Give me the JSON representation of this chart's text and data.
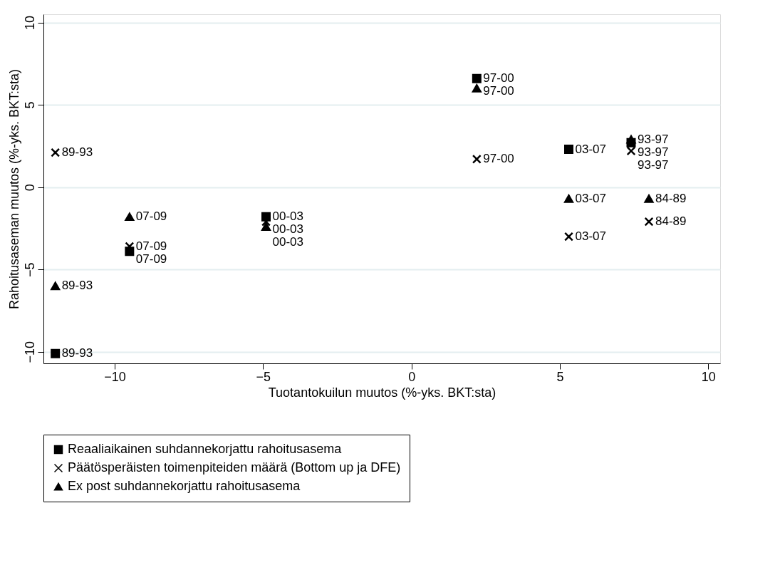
{
  "chart_data": {
    "type": "scatter",
    "xlabel": "Tuotantokuilun muutos (%-yks. BKT:sta)",
    "ylabel": "Rahoitusaseman muutos (%-yks. BKT:sta)",
    "xlim": [
      -12.4,
      10.4
    ],
    "xticks": [
      -10,
      -5,
      0,
      5,
      10
    ],
    "ylim": [
      -10.7,
      10.5
    ],
    "yticks": [
      -10,
      -5,
      0,
      5,
      10
    ],
    "grid": "y",
    "legend": "bottom",
    "series": [
      {
        "name": "Reaaliaikainen suhdannekorjattu rahoitusasema",
        "color": "#000000",
        "marker": "square",
        "x": [
          -12.0,
          -9.5,
          -4.9,
          2.2,
          5.3,
          7.4
        ],
        "values": [
          -10.1,
          -3.9,
          -1.8,
          6.6,
          2.3,
          2.7
        ],
        "value_labels": [
          "89-93",
          "07-09",
          "00-03",
          "97-00",
          "03-07",
          "93-97"
        ]
      },
      {
        "name": "Päätösperäisten toimenpiteiden määrä (Bottom up ja DFE)",
        "color": "#000000",
        "marker": "cross",
        "x": [
          -12.0,
          -9.5,
          -4.9,
          2.2,
          5.3,
          7.4,
          8.0
        ],
        "values": [
          2.1,
          -3.6,
          -2.1,
          1.7,
          -3.0,
          2.2,
          -2.1
        ],
        "value_labels": [
          "89-93",
          "07-09",
          "00-03",
          "97-00",
          "03-07",
          "93-97",
          "84-89"
        ]
      },
      {
        "name": "Ex post suhdannekorjattu rahoitusasema",
        "color": "#000000",
        "marker": "triangle",
        "x": [
          -12.0,
          -9.5,
          -4.9,
          2.2,
          5.3,
          7.4,
          8.0
        ],
        "values": [
          -6.0,
          -1.8,
          -2.4,
          6.0,
          -0.7,
          2.9,
          -0.7
        ],
        "value_labels": [
          "89-93",
          "07-09",
          "00-03",
          "97-00",
          "03-07",
          "93-97",
          "84-89"
        ]
      }
    ]
  }
}
